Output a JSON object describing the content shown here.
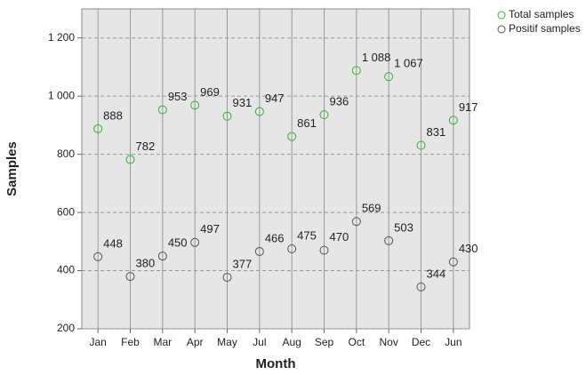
{
  "chart_data": {
    "type": "scatter",
    "x_label": "Month",
    "y_label": "Samples",
    "categories": [
      "Jan",
      "Feb",
      "Mar",
      "Apr",
      "May",
      "Jul",
      "Aug",
      "Sep",
      "Oct",
      "Nov",
      "Dec",
      "Jun"
    ],
    "series": [
      {
        "name": "Total samples",
        "color": "#2db52d",
        "values": [
          888,
          782,
          953,
          969,
          931,
          947,
          861,
          936,
          1088,
          1067,
          831,
          917
        ],
        "value_labels": [
          "888",
          "782",
          "953",
          "969",
          "931",
          "947",
          "861",
          "936",
          "1 088",
          "1 067",
          "831",
          "917"
        ]
      },
      {
        "name": "Positif samples",
        "color": "#555555",
        "values": [
          448,
          380,
          450,
          497,
          377,
          466,
          475,
          470,
          569,
          503,
          344,
          430
        ]
      }
    ],
    "ylim": [
      200,
      1300
    ],
    "yticks": [
      200,
      400,
      600,
      800,
      {
        "value": 1000,
        "label": "1 000"
      },
      {
        "value": 1200,
        "label": "1 200"
      }
    ],
    "grid": true,
    "legend": "top-right"
  }
}
